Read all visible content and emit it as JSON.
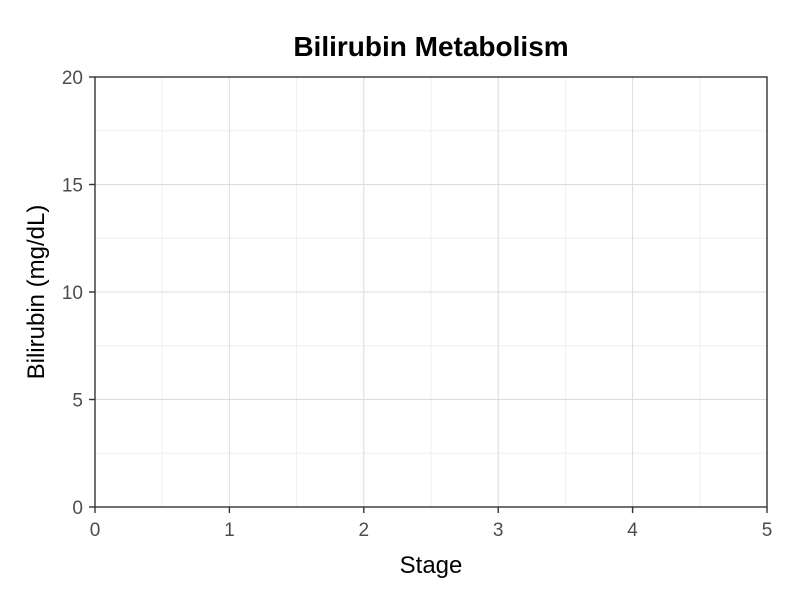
{
  "chart_data": {
    "type": "scatter",
    "title": "Bilirubin Metabolism",
    "xlabel": "Stage",
    "ylabel": "Bilirubin (mg/dL)",
    "xlim": [
      0,
      5
    ],
    "ylim": [
      0,
      20
    ],
    "x_ticks": [
      0,
      1,
      2,
      3,
      4,
      5
    ],
    "y_ticks": [
      0,
      5,
      10,
      15,
      20
    ],
    "grid": true,
    "series": []
  }
}
